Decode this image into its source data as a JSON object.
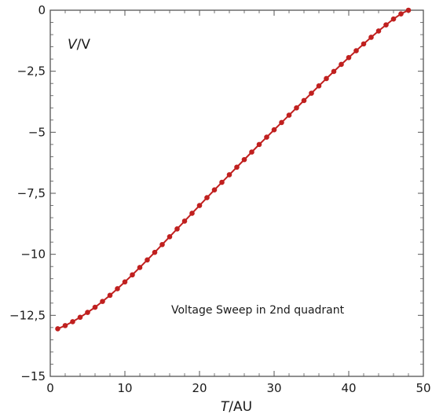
{
  "chart_data": {
    "type": "line",
    "title": "",
    "xlabel": {
      "italic": "T",
      "rest": "/AU"
    },
    "ylabel": {
      "italic": "V",
      "rest": "/V"
    },
    "xlim": [
      0,
      50
    ],
    "ylim": [
      -15,
      0
    ],
    "xticks": [
      0,
      10,
      20,
      30,
      40,
      50
    ],
    "yticks": [
      0,
      -2.5,
      -5,
      -7.5,
      -10,
      -12.5,
      -15
    ],
    "xtick_labels": [
      "0",
      "10",
      "20",
      "30",
      "40",
      "50"
    ],
    "ytick_labels": [
      "0",
      "−2,5",
      "−5",
      "−7,5",
      "−10",
      "−12,5",
      "−15"
    ],
    "grid": false,
    "annotation": "Voltage Sweep in 2nd quadrant",
    "colors": {
      "line": "#c0201f",
      "marker": "#c0201f",
      "axis": "#555555"
    },
    "series": [
      {
        "x": [
          1,
          2,
          3,
          4,
          5,
          6,
          7,
          8,
          9,
          10,
          11,
          12,
          13,
          14,
          15,
          16,
          17,
          18,
          19,
          20,
          21,
          22,
          23,
          24,
          25,
          26,
          27,
          28,
          29,
          30,
          31,
          32,
          33,
          34,
          35,
          36,
          37,
          38,
          39,
          40,
          41,
          42,
          43,
          44,
          45,
          46,
          47,
          48
        ],
        "y": [
          -13.05,
          -12.92,
          -12.76,
          -12.58,
          -12.38,
          -12.17,
          -11.93,
          -11.68,
          -11.41,
          -11.13,
          -10.84,
          -10.54,
          -10.23,
          -9.92,
          -9.6,
          -9.28,
          -8.96,
          -8.64,
          -8.32,
          -8.0,
          -7.68,
          -7.36,
          -7.05,
          -6.74,
          -6.43,
          -6.12,
          -5.81,
          -5.5,
          -5.2,
          -4.9,
          -4.6,
          -4.3,
          -4.0,
          -3.7,
          -3.4,
          -3.1,
          -2.8,
          -2.51,
          -2.22,
          -1.94,
          -1.66,
          -1.38,
          -1.11,
          -0.85,
          -0.6,
          -0.36,
          -0.15,
          0.0
        ]
      }
    ]
  }
}
